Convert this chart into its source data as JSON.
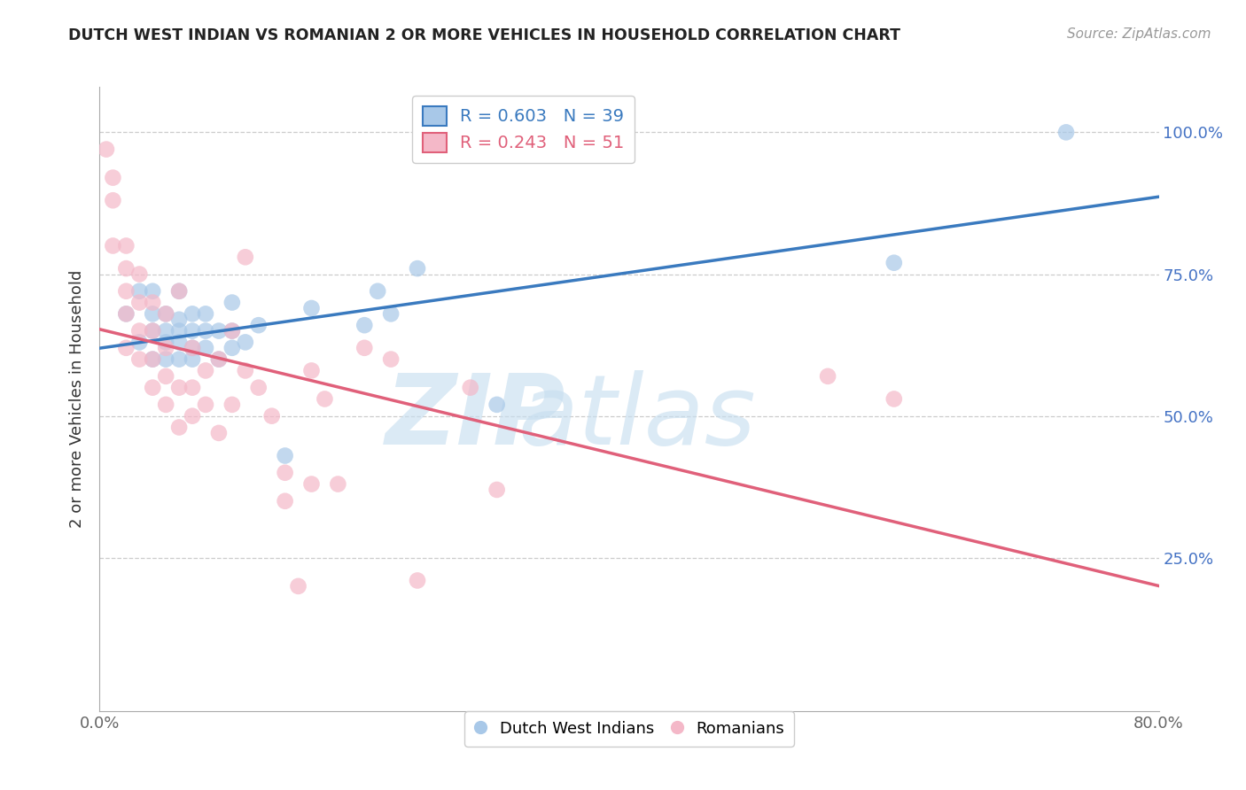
{
  "title": "DUTCH WEST INDIAN VS ROMANIAN 2 OR MORE VEHICLES IN HOUSEHOLD CORRELATION CHART",
  "source": "Source: ZipAtlas.com",
  "ylabel": "2 or more Vehicles in Household",
  "blue_R": 0.603,
  "blue_N": 39,
  "pink_R": 0.243,
  "pink_N": 51,
  "blue_color": "#a8c8e8",
  "pink_color": "#f4b8c8",
  "blue_line_color": "#3a7abf",
  "pink_line_color": "#e0607a",
  "legend_text_blue": "R = 0.603   N = 39",
  "legend_text_pink": "R = 0.243   N = 51",
  "blue_scatter_x": [
    0.02,
    0.03,
    0.03,
    0.04,
    0.04,
    0.04,
    0.04,
    0.05,
    0.05,
    0.05,
    0.05,
    0.06,
    0.06,
    0.06,
    0.06,
    0.06,
    0.07,
    0.07,
    0.07,
    0.07,
    0.08,
    0.08,
    0.08,
    0.09,
    0.09,
    0.1,
    0.1,
    0.1,
    0.11,
    0.12,
    0.14,
    0.16,
    0.2,
    0.21,
    0.22,
    0.24,
    0.3,
    0.6,
    0.73
  ],
  "blue_scatter_y": [
    0.68,
    0.63,
    0.72,
    0.6,
    0.65,
    0.68,
    0.72,
    0.6,
    0.63,
    0.65,
    0.68,
    0.6,
    0.63,
    0.65,
    0.67,
    0.72,
    0.6,
    0.62,
    0.65,
    0.68,
    0.62,
    0.65,
    0.68,
    0.6,
    0.65,
    0.62,
    0.65,
    0.7,
    0.63,
    0.66,
    0.43,
    0.69,
    0.66,
    0.72,
    0.68,
    0.76,
    0.52,
    0.77,
    1.0
  ],
  "pink_scatter_x": [
    0.005,
    0.01,
    0.01,
    0.01,
    0.02,
    0.02,
    0.02,
    0.02,
    0.02,
    0.03,
    0.03,
    0.03,
    0.03,
    0.04,
    0.04,
    0.04,
    0.04,
    0.05,
    0.05,
    0.05,
    0.05,
    0.06,
    0.06,
    0.06,
    0.07,
    0.07,
    0.07,
    0.08,
    0.08,
    0.09,
    0.09,
    0.1,
    0.1,
    0.11,
    0.11,
    0.12,
    0.13,
    0.14,
    0.14,
    0.15,
    0.16,
    0.16,
    0.17,
    0.18,
    0.2,
    0.22,
    0.24,
    0.28,
    0.3,
    0.55,
    0.6
  ],
  "pink_scatter_y": [
    0.97,
    0.8,
    0.88,
    0.92,
    0.62,
    0.68,
    0.72,
    0.76,
    0.8,
    0.6,
    0.65,
    0.7,
    0.75,
    0.55,
    0.6,
    0.65,
    0.7,
    0.52,
    0.57,
    0.62,
    0.68,
    0.48,
    0.55,
    0.72,
    0.5,
    0.55,
    0.62,
    0.52,
    0.58,
    0.47,
    0.6,
    0.52,
    0.65,
    0.58,
    0.78,
    0.55,
    0.5,
    0.35,
    0.4,
    0.2,
    0.38,
    0.58,
    0.53,
    0.38,
    0.62,
    0.6,
    0.21,
    0.55,
    0.37,
    0.57,
    0.53
  ],
  "xlim": [
    0.0,
    0.8
  ],
  "ylim": [
    -0.02,
    1.08
  ],
  "ytick_positions": [
    0.0,
    0.25,
    0.5,
    0.75,
    1.0
  ],
  "ytick_labels": [
    "",
    "25.0%",
    "50.0%",
    "75.0%",
    "100.0%"
  ],
  "xtick_positions": [
    0.0,
    0.8
  ],
  "xtick_labels": [
    "0.0%",
    "80.0%"
  ],
  "grid_lines": [
    0.25,
    0.5,
    0.75,
    1.0
  ]
}
